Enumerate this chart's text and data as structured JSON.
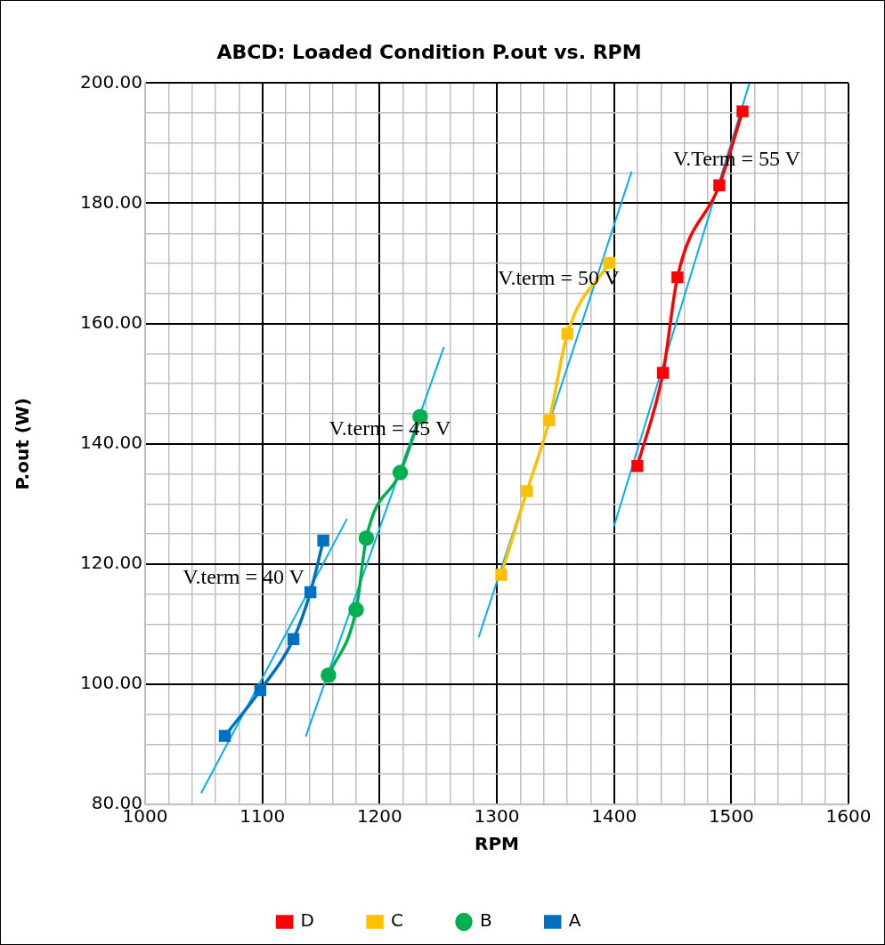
{
  "chart_data": {
    "type": "line",
    "title": "ABCD: Loaded Condition P.out vs. RPM",
    "xlabel": "RPM",
    "ylabel": "P.out (W)",
    "xlim": [
      1000,
      1600
    ],
    "xticks": [
      1000,
      {
        "value": 1020,
        "label": null
      },
      {
        "value": 1040,
        "label": null
      },
      {
        "value": 1060,
        "label": null
      },
      {
        "value": 1080,
        "label": null
      },
      1100,
      {
        "value": 1120,
        "label": null
      },
      {
        "value": 1140,
        "label": null
      },
      {
        "value": 1160,
        "label": null
      },
      {
        "value": 1180,
        "label": null
      },
      1200,
      {
        "value": 1220,
        "label": null
      },
      {
        "value": 1240,
        "label": null
      },
      {
        "value": 1260,
        "label": null
      },
      {
        "value": 1280,
        "label": null
      },
      1300,
      {
        "value": 1320,
        "label": null
      },
      {
        "value": 1340,
        "label": null
      },
      {
        "value": 1360,
        "label": null
      },
      {
        "value": 1380,
        "label": null
      },
      1400,
      {
        "value": 1420,
        "label": null
      },
      {
        "value": 1440,
        "label": null
      },
      {
        "value": 1460,
        "label": null
      },
      {
        "value": 1480,
        "label": null
      },
      1500,
      {
        "value": 1520,
        "label": null
      },
      {
        "value": 1540,
        "label": null
      },
      {
        "value": 1560,
        "label": null
      },
      {
        "value": 1580,
        "label": null
      },
      1600
    ],
    "ylim": [
      80,
      200
    ],
    "yticks": [
      {
        "value": 80,
        "label": "80.00"
      },
      {
        "value": 85,
        "label": null
      },
      {
        "value": 90,
        "label": null
      },
      {
        "value": 95,
        "label": null
      },
      {
        "value": 100,
        "label": "100.00"
      },
      {
        "value": 105,
        "label": null
      },
      {
        "value": 110,
        "label": null
      },
      {
        "value": 115,
        "label": null
      },
      {
        "value": 120,
        "label": "120.00"
      },
      {
        "value": 125,
        "label": null
      },
      {
        "value": 130,
        "label": null
      },
      {
        "value": 135,
        "label": null
      },
      {
        "value": 140,
        "label": "140.00"
      },
      {
        "value": 145,
        "label": null
      },
      {
        "value": 150,
        "label": null
      },
      {
        "value": 155,
        "label": null
      },
      {
        "value": 160,
        "label": "160.00"
      },
      {
        "value": 165,
        "label": null
      },
      {
        "value": 170,
        "label": null
      },
      {
        "value": 175,
        "label": null
      },
      {
        "value": 180,
        "label": "180.00"
      },
      {
        "value": 185,
        "label": null
      },
      {
        "value": 190,
        "label": null
      },
      {
        "value": 195,
        "label": null
      },
      {
        "value": 200,
        "label": "200.00"
      }
    ],
    "grid": true,
    "legend": "bottom",
    "line_style": "solid",
    "series": [
      {
        "name": "D",
        "color": "#ff0000",
        "marker": "square",
        "x": [
          1419.9,
          1441.8,
          1454.1,
          1489.8,
          1509.6
        ],
        "values": [
          136.3,
          151.8,
          167.7,
          183.0,
          195.3
        ]
      },
      {
        "name": "C",
        "color": "#ffc000",
        "marker": "square",
        "x": [
          1303.8,
          1325.7,
          1344.7,
          1360.2,
          1395.9
        ],
        "values": [
          118.2,
          132.1,
          143.9,
          158.3,
          170.1
        ]
      },
      {
        "name": "B",
        "color": "#00b050",
        "marker": "circle",
        "x": [
          1156.4,
          1180,
          1188.7,
          1217.6,
          1234.6
        ],
        "values": [
          101.5,
          112.4,
          124.3,
          135.2,
          144.5
        ]
      },
      {
        "name": "A",
        "color": "#0070c0",
        "marker": "square",
        "x": [
          1068,
          1098.2,
          1126.5,
          1141,
          1152
        ],
        "values": [
          91.4,
          99.0,
          107.5,
          115.3,
          123.9
        ]
      },
      {
        "type": "line",
        "color": "#00b0f0",
        "marker": "none",
        "x": [
          1047.8,
          1172.2
        ],
        "values": [
          81.9,
          127.5
        ]
      },
      {
        "type": "line",
        "color": "#00b0f0",
        "marker": "none",
        "x": [
          1137,
          1254.9
        ],
        "values": [
          91.3,
          156.1
        ]
      },
      {
        "type": "line",
        "color": "#00b0f0",
        "marker": "none",
        "x": [
          1284.5,
          1415
        ],
        "values": [
          107.8,
          185.3
        ]
      },
      {
        "type": "line",
        "color": "#00b0f0",
        "marker": "none",
        "x": [
          1400,
          1515.5
        ],
        "values": [
          126.3,
          200
        ]
      }
    ],
    "annotations": [
      "V.term = 40 V",
      "V.term = 45 V",
      "V.term = 50 V",
      "V.Term = 55 V"
    ]
  }
}
